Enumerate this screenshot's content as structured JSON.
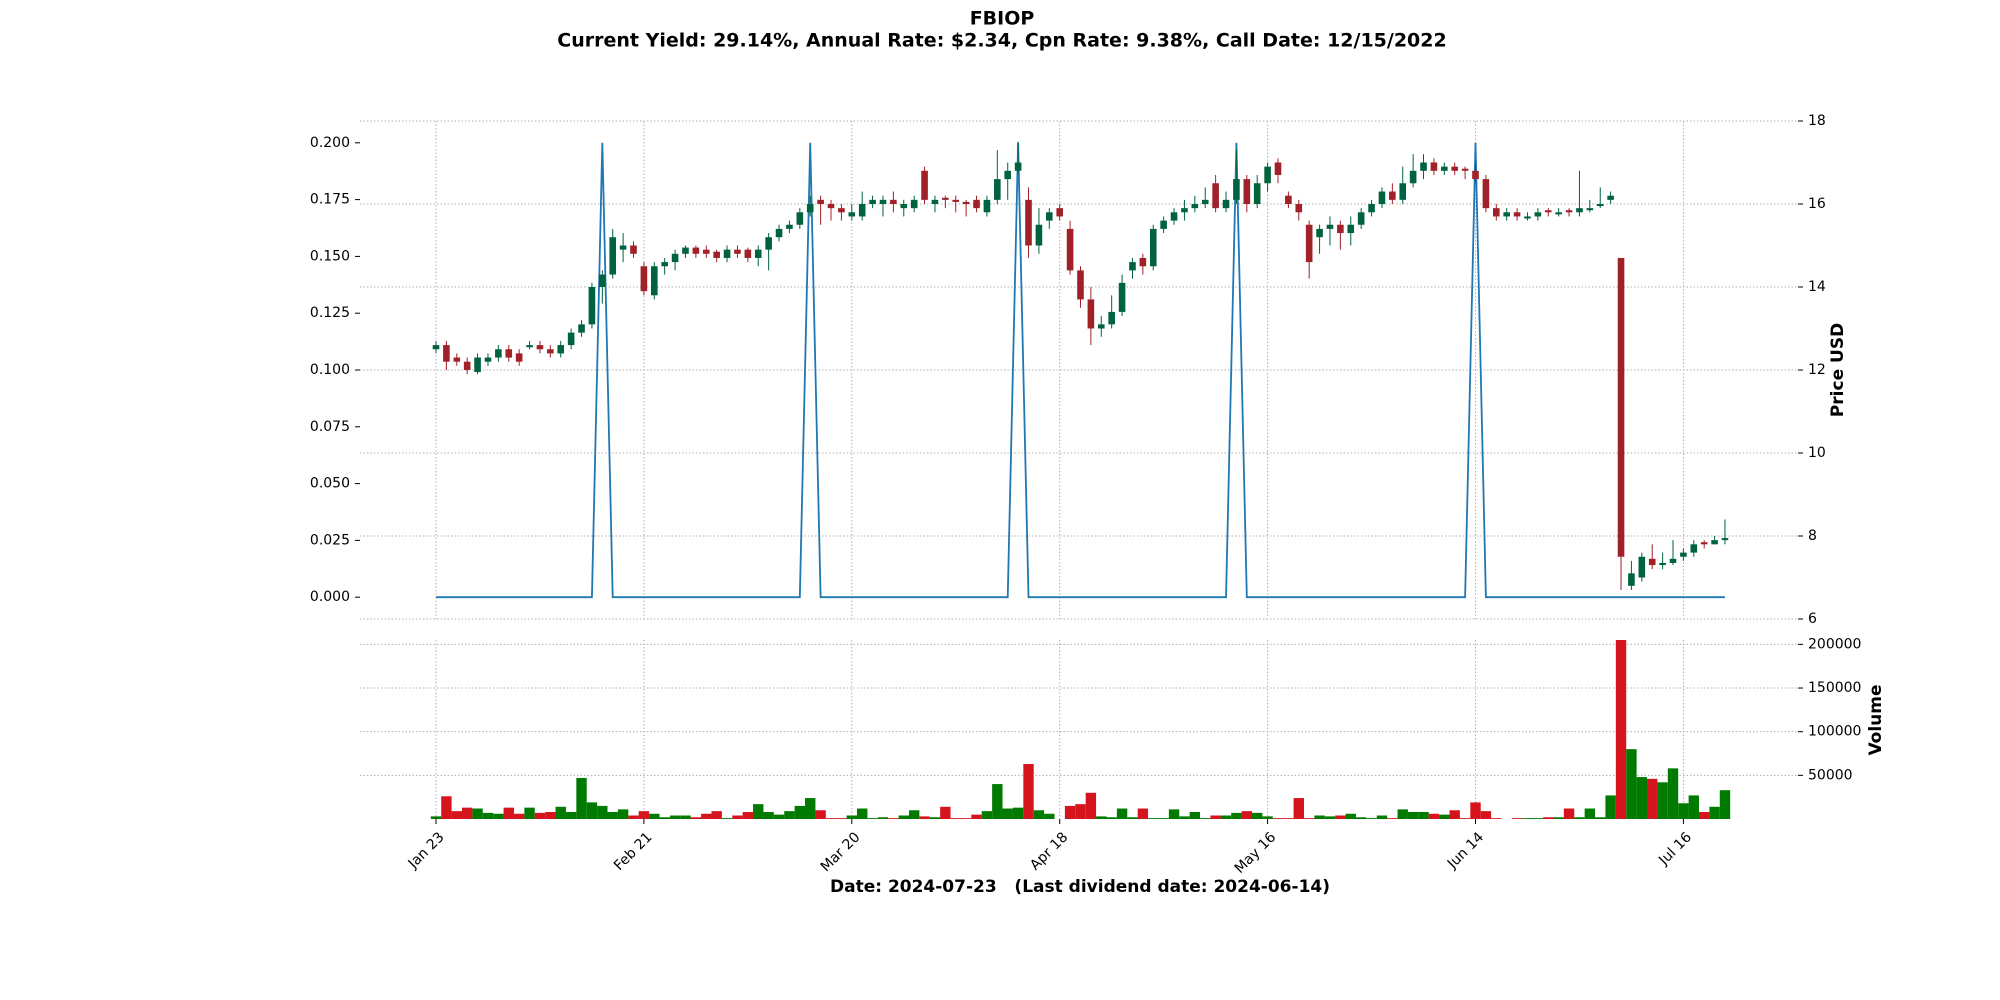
{
  "chart_data": [
    {
      "type": "candlestick",
      "title": "FBIOP",
      "subtitle": "Current Yield: 29.14%, Annual Rate: $2.34, Cpn Rate: 9.38%, Call Date: 12/15/2022",
      "y2label": "Price USD",
      "categories": [
        "Jan 23",
        null,
        null,
        null,
        null,
        null,
        null,
        null,
        null,
        null,
        null,
        null,
        null,
        null,
        null,
        null,
        null,
        null,
        null,
        null,
        "Feb 21",
        null,
        null,
        null,
        null,
        null,
        null,
        null,
        null,
        null,
        null,
        null,
        null,
        null,
        null,
        null,
        null,
        null,
        null,
        null,
        "Mar 20",
        null,
        null,
        null,
        null,
        null,
        null,
        null,
        null,
        null,
        null,
        null,
        null,
        null,
        null,
        null,
        null,
        null,
        null,
        null,
        "Apr 18",
        null,
        null,
        null,
        null,
        null,
        null,
        null,
        null,
        null,
        null,
        null,
        null,
        null,
        null,
        null,
        null,
        null,
        null,
        null,
        "May 16",
        null,
        null,
        null,
        null,
        null,
        null,
        null,
        null,
        null,
        null,
        null,
        null,
        null,
        null,
        null,
        null,
        null,
        null,
        null,
        "Jun 14",
        null,
        null,
        null,
        null,
        null,
        null,
        null,
        null,
        null,
        null,
        null,
        null,
        null,
        null,
        null,
        null,
        null,
        null,
        null,
        "Jul 16",
        null,
        null,
        null,
        null
      ],
      "ohlc_axis": "y2",
      "up_color": "#006340",
      "down_color": "#a02128",
      "ohlc": [
        [
          12.5,
          12.7,
          12.4,
          12.6
        ],
        [
          12.6,
          12.7,
          12.0,
          12.2
        ],
        [
          12.3,
          12.4,
          12.1,
          12.2
        ],
        [
          12.2,
          12.3,
          11.9,
          12.0
        ],
        [
          11.95,
          12.4,
          11.9,
          12.3
        ],
        [
          12.2,
          12.4,
          12.1,
          12.3
        ],
        [
          12.3,
          12.6,
          12.2,
          12.5
        ],
        [
          12.5,
          12.6,
          12.2,
          12.3
        ],
        [
          12.4,
          12.5,
          12.1,
          12.2
        ],
        [
          12.55,
          12.7,
          12.5,
          12.6
        ],
        [
          12.6,
          12.7,
          12.4,
          12.5
        ],
        [
          12.5,
          12.6,
          12.3,
          12.4
        ],
        [
          12.4,
          12.7,
          12.3,
          12.6
        ],
        [
          12.6,
          13.0,
          12.5,
          12.9
        ],
        [
          12.9,
          13.2,
          12.8,
          13.1
        ],
        [
          13.1,
          14.1,
          13.0,
          14.0
        ],
        [
          14.0,
          14.4,
          13.6,
          14.3
        ],
        [
          14.3,
          15.4,
          14.2,
          15.2
        ],
        [
          14.9,
          15.3,
          14.6,
          15.0
        ],
        [
          15.0,
          15.1,
          14.7,
          14.8
        ],
        [
          14.5,
          14.6,
          13.8,
          13.9
        ],
        [
          13.8,
          14.6,
          13.7,
          14.5
        ],
        [
          14.5,
          14.7,
          14.3,
          14.6
        ],
        [
          14.6,
          14.9,
          14.4,
          14.8
        ],
        [
          14.8,
          15.0,
          14.7,
          14.95
        ],
        [
          14.95,
          15.0,
          14.7,
          14.8
        ],
        [
          14.9,
          15.0,
          14.7,
          14.8
        ],
        [
          14.85,
          14.9,
          14.6,
          14.7
        ],
        [
          14.7,
          15.0,
          14.6,
          14.9
        ],
        [
          14.9,
          15.0,
          14.7,
          14.8
        ],
        [
          14.9,
          14.95,
          14.6,
          14.7
        ],
        [
          14.7,
          15.0,
          14.5,
          14.9
        ],
        [
          14.9,
          15.3,
          14.4,
          15.2
        ],
        [
          15.2,
          15.5,
          15.1,
          15.4
        ],
        [
          15.4,
          15.6,
          15.3,
          15.5
        ],
        [
          15.5,
          15.9,
          15.4,
          15.8
        ],
        [
          15.8,
          16.2,
          15.7,
          16.0
        ],
        [
          16.1,
          16.2,
          15.5,
          16.0
        ],
        [
          16.0,
          16.1,
          15.6,
          15.9
        ],
        [
          15.9,
          16.0,
          15.6,
          15.8
        ],
        [
          15.7,
          16.0,
          15.6,
          15.8
        ],
        [
          15.7,
          16.3,
          15.6,
          16.0
        ],
        [
          16.0,
          16.2,
          15.9,
          16.1
        ],
        [
          16.0,
          16.2,
          15.7,
          16.1
        ],
        [
          16.1,
          16.3,
          15.8,
          16.0
        ],
        [
          15.9,
          16.1,
          15.7,
          16.0
        ],
        [
          15.9,
          16.2,
          15.8,
          16.1
        ],
        [
          16.8,
          16.9,
          16.0,
          16.1
        ],
        [
          16.0,
          16.2,
          15.8,
          16.1
        ],
        [
          16.15,
          16.2,
          15.9,
          16.1
        ],
        [
          16.1,
          16.2,
          15.8,
          16.05
        ],
        [
          16.05,
          16.1,
          15.7,
          16.0
        ],
        [
          16.1,
          16.2,
          15.8,
          15.9
        ],
        [
          15.8,
          16.2,
          15.7,
          16.1
        ],
        [
          16.1,
          17.3,
          16.0,
          16.6
        ],
        [
          16.6,
          17.0,
          16.1,
          16.8
        ],
        [
          16.8,
          17.5,
          16.7,
          17.0
        ],
        [
          16.1,
          16.4,
          14.7,
          15.0
        ],
        [
          15.0,
          15.9,
          14.8,
          15.5
        ],
        [
          15.6,
          15.9,
          15.4,
          15.8
        ],
        [
          15.9,
          16.0,
          15.6,
          15.7
        ],
        [
          15.4,
          15.6,
          14.3,
          14.4
        ],
        [
          14.4,
          14.5,
          13.5,
          13.7
        ],
        [
          13.7,
          14.0,
          12.6,
          13.0
        ],
        [
          13.0,
          13.3,
          12.8,
          13.1
        ],
        [
          13.1,
          13.8,
          13.0,
          13.4
        ],
        [
          13.4,
          14.3,
          13.3,
          14.1
        ],
        [
          14.4,
          14.7,
          14.2,
          14.6
        ],
        [
          14.7,
          14.8,
          14.3,
          14.5
        ],
        [
          14.5,
          15.5,
          14.4,
          15.4
        ],
        [
          15.4,
          15.7,
          15.3,
          15.6
        ],
        [
          15.6,
          15.9,
          15.5,
          15.8
        ],
        [
          15.8,
          16.1,
          15.6,
          15.9
        ],
        [
          15.9,
          16.2,
          15.8,
          16.0
        ],
        [
          16.0,
          16.4,
          15.9,
          16.1
        ],
        [
          16.5,
          16.7,
          15.8,
          15.9
        ],
        [
          15.9,
          16.3,
          15.8,
          16.1
        ],
        [
          16.1,
          17.3,
          16.0,
          16.6
        ],
        [
          16.6,
          16.7,
          15.8,
          16.0
        ],
        [
          16.0,
          16.7,
          15.9,
          16.5
        ],
        [
          16.5,
          17.0,
          16.3,
          16.9
        ],
        [
          17.0,
          17.1,
          16.5,
          16.7
        ],
        [
          16.2,
          16.3,
          15.9,
          16.0
        ],
        [
          16.0,
          16.1,
          15.6,
          15.8
        ],
        [
          15.5,
          15.6,
          14.2,
          14.6
        ],
        [
          15.2,
          15.5,
          14.8,
          15.4
        ],
        [
          15.4,
          15.7,
          15.0,
          15.5
        ],
        [
          15.5,
          15.6,
          14.9,
          15.3
        ],
        [
          15.3,
          15.7,
          15.0,
          15.5
        ],
        [
          15.5,
          15.9,
          15.4,
          15.8
        ],
        [
          15.8,
          16.1,
          15.7,
          16.0
        ],
        [
          16.0,
          16.4,
          15.9,
          16.3
        ],
        [
          16.3,
          16.5,
          16.0,
          16.1
        ],
        [
          16.1,
          16.9,
          16.0,
          16.5
        ],
        [
          16.5,
          17.2,
          16.4,
          16.8
        ],
        [
          16.8,
          17.2,
          16.6,
          17.0
        ],
        [
          17.0,
          17.1,
          16.7,
          16.8
        ],
        [
          16.8,
          17.0,
          16.7,
          16.9
        ],
        [
          16.9,
          17.0,
          16.7,
          16.8
        ],
        [
          16.85,
          16.9,
          16.6,
          16.8
        ],
        [
          16.8,
          17.0,
          16.5,
          16.6
        ],
        [
          16.6,
          16.7,
          15.8,
          15.9
        ],
        [
          15.9,
          16.0,
          15.6,
          15.7
        ],
        [
          15.7,
          15.9,
          15.6,
          15.8
        ],
        [
          15.8,
          15.9,
          15.6,
          15.7
        ],
        [
          15.65,
          15.8,
          15.6,
          15.7
        ],
        [
          15.7,
          15.9,
          15.6,
          15.8
        ],
        [
          15.85,
          15.9,
          15.7,
          15.8
        ],
        [
          15.75,
          15.9,
          15.7,
          15.8
        ],
        [
          15.85,
          15.9,
          15.7,
          15.8
        ],
        [
          15.8,
          16.8,
          15.7,
          15.9
        ],
        [
          15.85,
          16.1,
          15.8,
          15.9
        ],
        [
          15.95,
          16.4,
          15.9,
          16.0
        ],
        [
          16.1,
          16.3,
          16.0,
          16.2
        ],
        [
          14.7,
          14.7,
          6.7,
          7.5
        ],
        [
          6.8,
          7.4,
          6.7,
          7.1
        ],
        [
          7.0,
          7.6,
          6.9,
          7.5
        ],
        [
          7.45,
          7.8,
          7.2,
          7.3
        ],
        [
          7.3,
          7.6,
          7.2,
          7.35
        ],
        [
          7.35,
          7.9,
          7.3,
          7.45
        ],
        [
          7.5,
          7.7,
          7.4,
          7.6
        ],
        [
          7.6,
          7.9,
          7.5,
          7.8
        ],
        [
          7.85,
          7.9,
          7.7,
          7.8
        ],
        [
          7.8,
          8.0,
          7.8,
          7.9
        ],
        [
          7.9,
          8.4,
          7.8,
          7.95
        ]
      ],
      "series": [
        {
          "color": "#1f77b4",
          "axis": "y",
          "values": [
            0,
            0,
            0,
            0,
            0,
            0,
            0,
            0,
            0,
            0,
            0,
            0,
            0,
            0,
            0,
            0,
            0.2,
            0,
            0,
            0,
            0,
            0,
            0,
            0,
            0,
            0,
            0,
            0,
            0,
            0,
            0,
            0,
            0,
            0,
            0,
            0,
            0.2,
            0,
            0,
            0,
            0,
            0,
            0,
            0,
            0,
            0,
            0,
            0,
            0,
            0,
            0,
            0,
            0,
            0,
            0,
            0,
            0.2,
            0,
            0,
            0,
            0,
            0,
            0,
            0,
            0,
            0,
            0,
            0,
            0,
            0,
            0,
            0,
            0,
            0,
            0,
            0,
            0,
            0.2,
            0,
            0,
            0,
            0,
            0,
            0,
            0,
            0,
            0,
            0,
            0,
            0,
            0,
            0,
            0,
            0,
            0,
            0,
            0,
            0,
            0,
            0,
            0.2,
            0,
            0,
            0,
            0,
            0,
            0,
            0,
            0,
            0,
            0,
            0,
            0,
            0,
            0,
            0,
            0,
            0,
            0,
            0,
            0,
            0,
            0,
            0,
            0
          ]
        }
      ],
      "ylim": [
        -0.0096,
        0.2096
      ],
      "yticks": [
        {
          "value": 0,
          "label": "0.000"
        },
        {
          "value": 0.025,
          "label": "0.025"
        },
        {
          "value": 0.05,
          "label": "0.050"
        },
        {
          "value": 0.075,
          "label": "0.075"
        },
        {
          "value": 0.1,
          "label": "0.100"
        },
        {
          "value": 0.125,
          "label": "0.125"
        },
        {
          "value": 0.15,
          "label": "0.150"
        },
        {
          "value": 0.175,
          "label": "0.175"
        },
        {
          "value": 0.2,
          "label": "0.200"
        }
      ],
      "y2lim": [
        6,
        18
      ],
      "y2ticks": [
        6,
        8,
        10,
        12,
        14,
        16,
        18
      ],
      "grid": true
    },
    {
      "type": "bar",
      "y2label": "Volume",
      "xlabel": "Date: 2024-07-23   (Last dividend date: 2024-06-14)",
      "up_color": "#007a00",
      "down_color": "#d6141e",
      "values": [
        3000,
        26000,
        9000,
        13000,
        12000,
        7000,
        6000,
        13000,
        6000,
        13000,
        7000,
        8000,
        14000,
        8000,
        47000,
        19000,
        15000,
        8000,
        11000,
        4000,
        9000,
        6000,
        2000,
        4000,
        4000,
        2000,
        6000,
        9000,
        1000,
        4000,
        8000,
        17000,
        8000,
        5000,
        9000,
        15000,
        24000,
        10000,
        1000,
        1000,
        4000,
        12000,
        1000,
        2000,
        1000,
        4000,
        10000,
        3000,
        2000,
        14000,
        1000,
        1000,
        5000,
        9000,
        40000,
        12000,
        13000,
        63000,
        10000,
        6000,
        null,
        15000,
        17000,
        30000,
        3000,
        2000,
        12000,
        2000,
        12000,
        1000,
        1000,
        11000,
        3000,
        8000,
        1000,
        4000,
        4000,
        7000,
        9000,
        7000,
        3000,
        1000,
        1000,
        24000,
        1000,
        4000,
        3000,
        4000,
        6000,
        2000,
        1000,
        4000,
        1000,
        11000,
        8000,
        8000,
        6000,
        5000,
        10000,
        1000,
        19000,
        9000,
        1000,
        null,
        1000,
        1000,
        1000,
        2000,
        2000,
        12000,
        2000,
        12000,
        2000,
        27000,
        205000,
        80000,
        48000,
        46000,
        42000,
        58000,
        18000,
        27000,
        8000,
        14000,
        33000
      ],
      "y2lim": [
        0,
        205000
      ],
      "y2ticks": [
        50000,
        100000,
        150000,
        200000
      ],
      "grid": true
    }
  ]
}
